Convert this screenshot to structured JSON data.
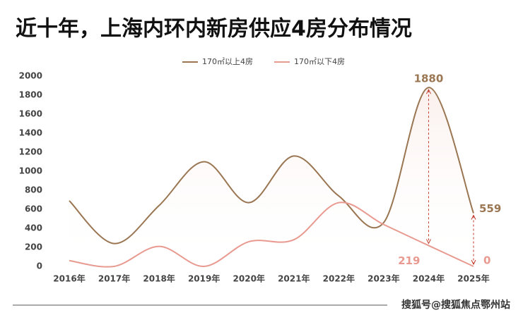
{
  "chart_data": {
    "type": "line",
    "title": "近十年，上海内环内新房供应4房分布情况",
    "categories": [
      "2016年",
      "2017年",
      "2018年",
      "2019年",
      "2020年",
      "2021年",
      "2022年",
      "2023年",
      "2024年",
      "2025年"
    ],
    "series": [
      {
        "name": "170㎡以上4房",
        "color": "#9a7652",
        "values": [
          690,
          240,
          640,
          1100,
          670,
          1160,
          740,
          460,
          1880,
          559
        ]
      },
      {
        "name": "170㎡以下4房",
        "color": "#e99a90",
        "values": [
          60,
          0,
          210,
          0,
          260,
          280,
          670,
          440,
          219,
          0
        ]
      }
    ],
    "ylim": [
      0,
      2000
    ],
    "yticks": [
      0,
      200,
      400,
      600,
      800,
      1000,
      1200,
      1400,
      1600,
      1800,
      2000
    ],
    "grid": false,
    "legend": "top"
  },
  "footer": "搜狐号@搜狐焦点鄂州站"
}
